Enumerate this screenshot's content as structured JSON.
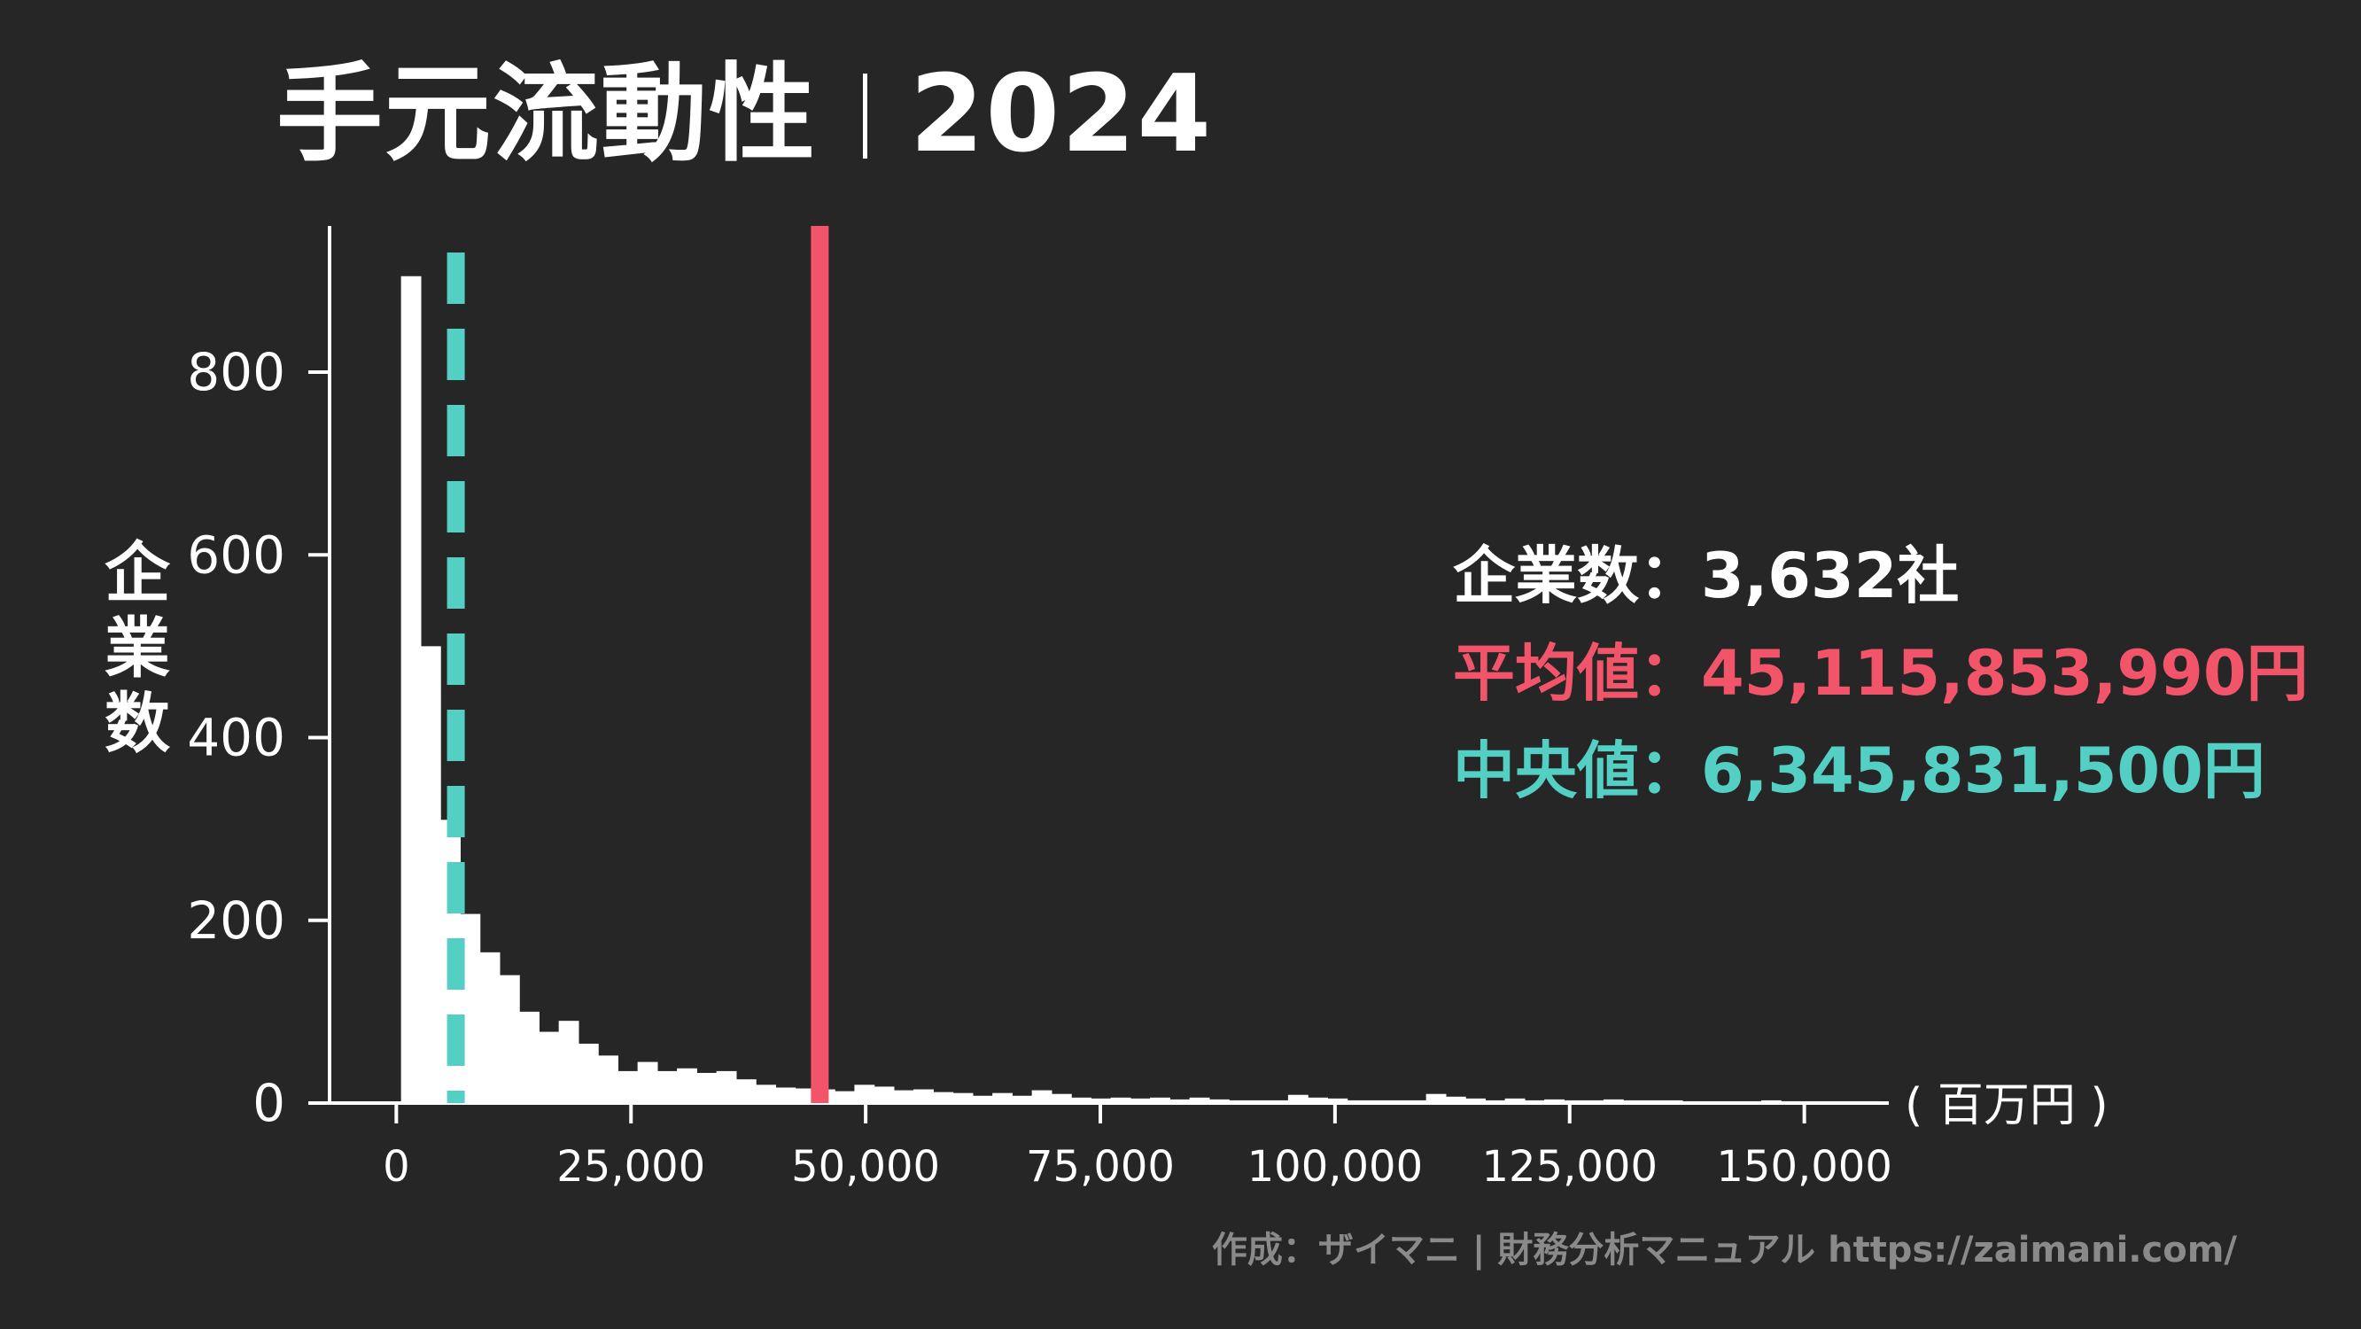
{
  "title": {
    "main": "手元流動性",
    "year": "2024"
  },
  "stats": {
    "count_label": "企業数",
    "count_value": "：3,632社",
    "mean_label": "平均値",
    "mean_value": "：45,115,853,990円",
    "median_label": "中央値",
    "median_value": "：6,345,831,500円"
  },
  "footer": "作成：ザイマニ | 財務分析マニュアル https://zaimani.com/",
  "colors": {
    "background": "#262626",
    "bars": "#ffffff",
    "mean": "#f2546a",
    "median": "#54cfc3",
    "footer": "#8a8a8a"
  },
  "chart_data": {
    "type": "bar",
    "ylabel": "企業数",
    "xlabel": "( 百万円 )",
    "xlim": [
      -9000,
      159000
    ],
    "ylim": [
      0,
      960
    ],
    "x_ticks": [
      0,
      25000,
      50000,
      75000,
      100000,
      125000,
      150000
    ],
    "x_tick_labels": [
      "0",
      "25,000",
      "50,000",
      "75,000",
      "100,000",
      "125,000",
      "150,000"
    ],
    "y_ticks": [
      0,
      200,
      400,
      600,
      800
    ],
    "y_tick_labels": [
      "0",
      "200",
      "400",
      "600",
      "800"
    ],
    "bin_start": 500,
    "bin_width": 2100,
    "counts": [
      905,
      500,
      310,
      207,
      165,
      140,
      100,
      78,
      90,
      65,
      52,
      35,
      45,
      35,
      38,
      33,
      35,
      26,
      20,
      17,
      16,
      15,
      13,
      20,
      18,
      14,
      15,
      12,
      11,
      8,
      11,
      8,
      14,
      10,
      6,
      5,
      6,
      5,
      6,
      4,
      6,
      4,
      3,
      3,
      3,
      9,
      6,
      5,
      3,
      3,
      3,
      3,
      10,
      7,
      5,
      3,
      5,
      3,
      4,
      3,
      3,
      4,
      3,
      3,
      3,
      2,
      2,
      2,
      2,
      3,
      2,
      2,
      2,
      2,
      2
    ],
    "mean": 45115.85399,
    "median": 6345.8315
  }
}
